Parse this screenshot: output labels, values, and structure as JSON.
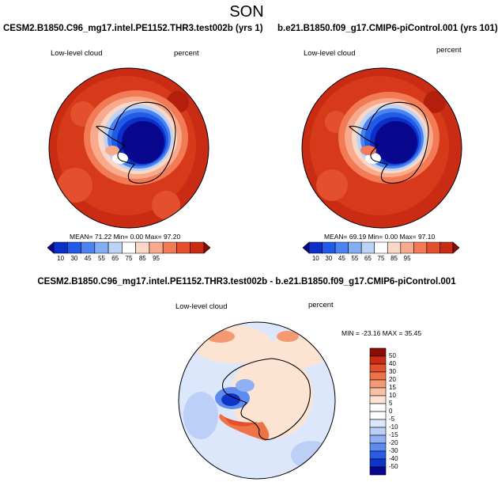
{
  "page_title": "SON",
  "colors": {
    "abs_scale": [
      "#08088f",
      "#0b2fc7",
      "#1f5be6",
      "#4c83ee",
      "#83aef3",
      "#bcd3f7",
      "#ffffff",
      "#fbd7c5",
      "#f8aa8c",
      "#f27a55",
      "#e4502e",
      "#c92b13",
      "#8d0b05"
    ],
    "diff_scale": [
      "#08088f",
      "#0f34c8",
      "#2a5be6",
      "#5d8bf0",
      "#8fb0f4",
      "#bcd0f7",
      "#dce7fb",
      "#ffffff",
      "#ffffff",
      "#fde3d2",
      "#fac0a3",
      "#f49a73",
      "#ee7447",
      "#e4502e",
      "#c92b13",
      "#8d0b05"
    ],
    "land_outline": "#000000"
  },
  "panels": {
    "left": {
      "title": "CESM2.B1850.C96_mg17.intel.PE1152.THR3.test002b (yrs 1)",
      "variable": "Low-level cloud",
      "units": "percent",
      "mean_label": "MEAN=",
      "mean": "71.22",
      "min_label": "Min=",
      "min": "0.00",
      "max_label": "Max=",
      "max": "97.20"
    },
    "right": {
      "title": "b.e21.B1850.f09_g17.CMIP6-piControl.001 (yrs 101)",
      "variable": "Low-level cloud",
      "units": "percent",
      "mean_label": "MEAN=",
      "mean": "69.19",
      "min_label": "Min=",
      "min": "0.00",
      "max_label": "Max=",
      "max": "97.10"
    },
    "diff": {
      "title": "CESM2.B1850.C96_mg17.intel.PE1152.THR3.test002b - b.e21.B1850.f09_g17.CMIP6-piControl.001",
      "variable": "Low-level cloud",
      "units": "percent",
      "minmax_text": "MIN = -23.16 MAX =  35.45"
    }
  },
  "colorbar_abs": {
    "labels": [
      "10",
      "30",
      "45",
      "55",
      "65",
      "75",
      "85",
      "95"
    ]
  },
  "colorbar_diff": {
    "labels": [
      "50",
      "40",
      "30",
      "20",
      "15",
      "10",
      "5",
      "0",
      "-5",
      "-10",
      "-15",
      "-20",
      "-30",
      "-40",
      "-50"
    ]
  }
}
